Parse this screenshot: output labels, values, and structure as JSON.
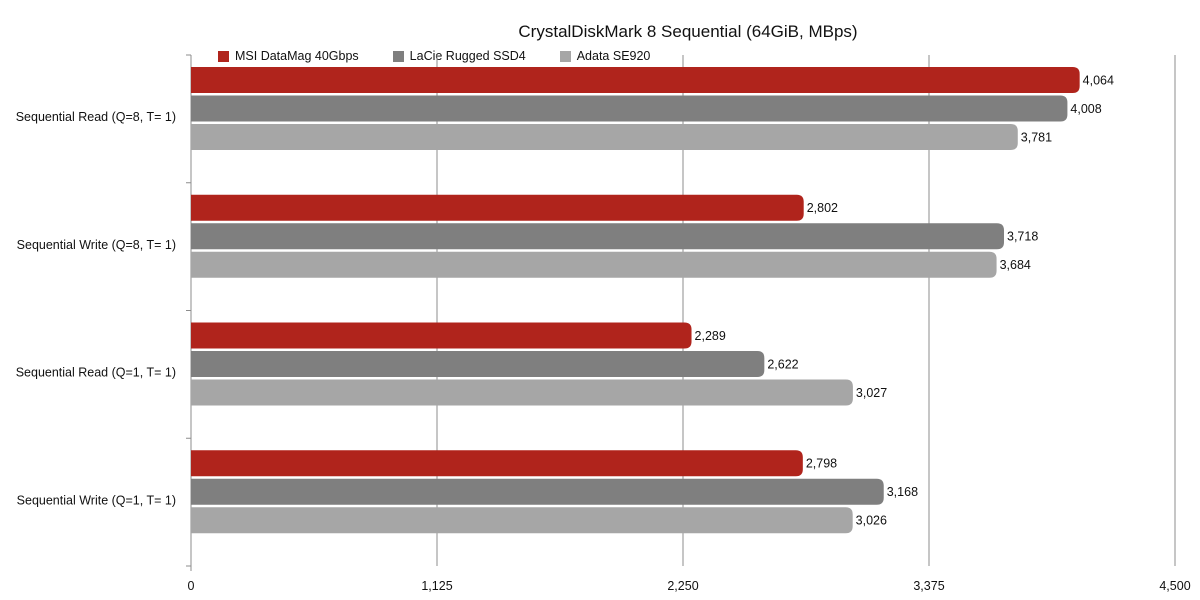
{
  "chart_data": {
    "type": "bar",
    "orientation": "horizontal",
    "title": "CrystalDiskMark 8 Sequential (64GiB, MBps)",
    "categories": [
      "Sequential Read (Q=8, T= 1)",
      "Sequential Write (Q=8, T= 1)",
      "Sequential Read (Q=1, T= 1)",
      "Sequential Write (Q=1, T= 1)"
    ],
    "series": [
      {
        "name": "MSI DataMag 40Gbps",
        "color": "#b0241c",
        "values": [
          4064,
          2802,
          2289,
          2798
        ],
        "labels": [
          "4,064",
          "2,802",
          "2,289",
          "2,798"
        ]
      },
      {
        "name": "LaCie Rugged SSD4",
        "color": "#7f7f7f",
        "values": [
          4008,
          3718,
          2622,
          3168
        ],
        "labels": [
          "4,008",
          "3,718",
          "2,622",
          "3,168"
        ]
      },
      {
        "name": "Adata SE920",
        "color": "#a6a6a6",
        "values": [
          3781,
          3684,
          3027,
          3026
        ],
        "labels": [
          "3,781",
          "3,684",
          "3,027",
          "3,026"
        ]
      }
    ],
    "xlim": [
      0,
      4500
    ],
    "xticks": [
      0,
      1125,
      2250,
      3375,
      4500
    ],
    "xtick_labels": [
      "0",
      "1,125",
      "2,250",
      "3,375",
      "4,500"
    ],
    "grid": true,
    "legend_position": "top-left"
  }
}
